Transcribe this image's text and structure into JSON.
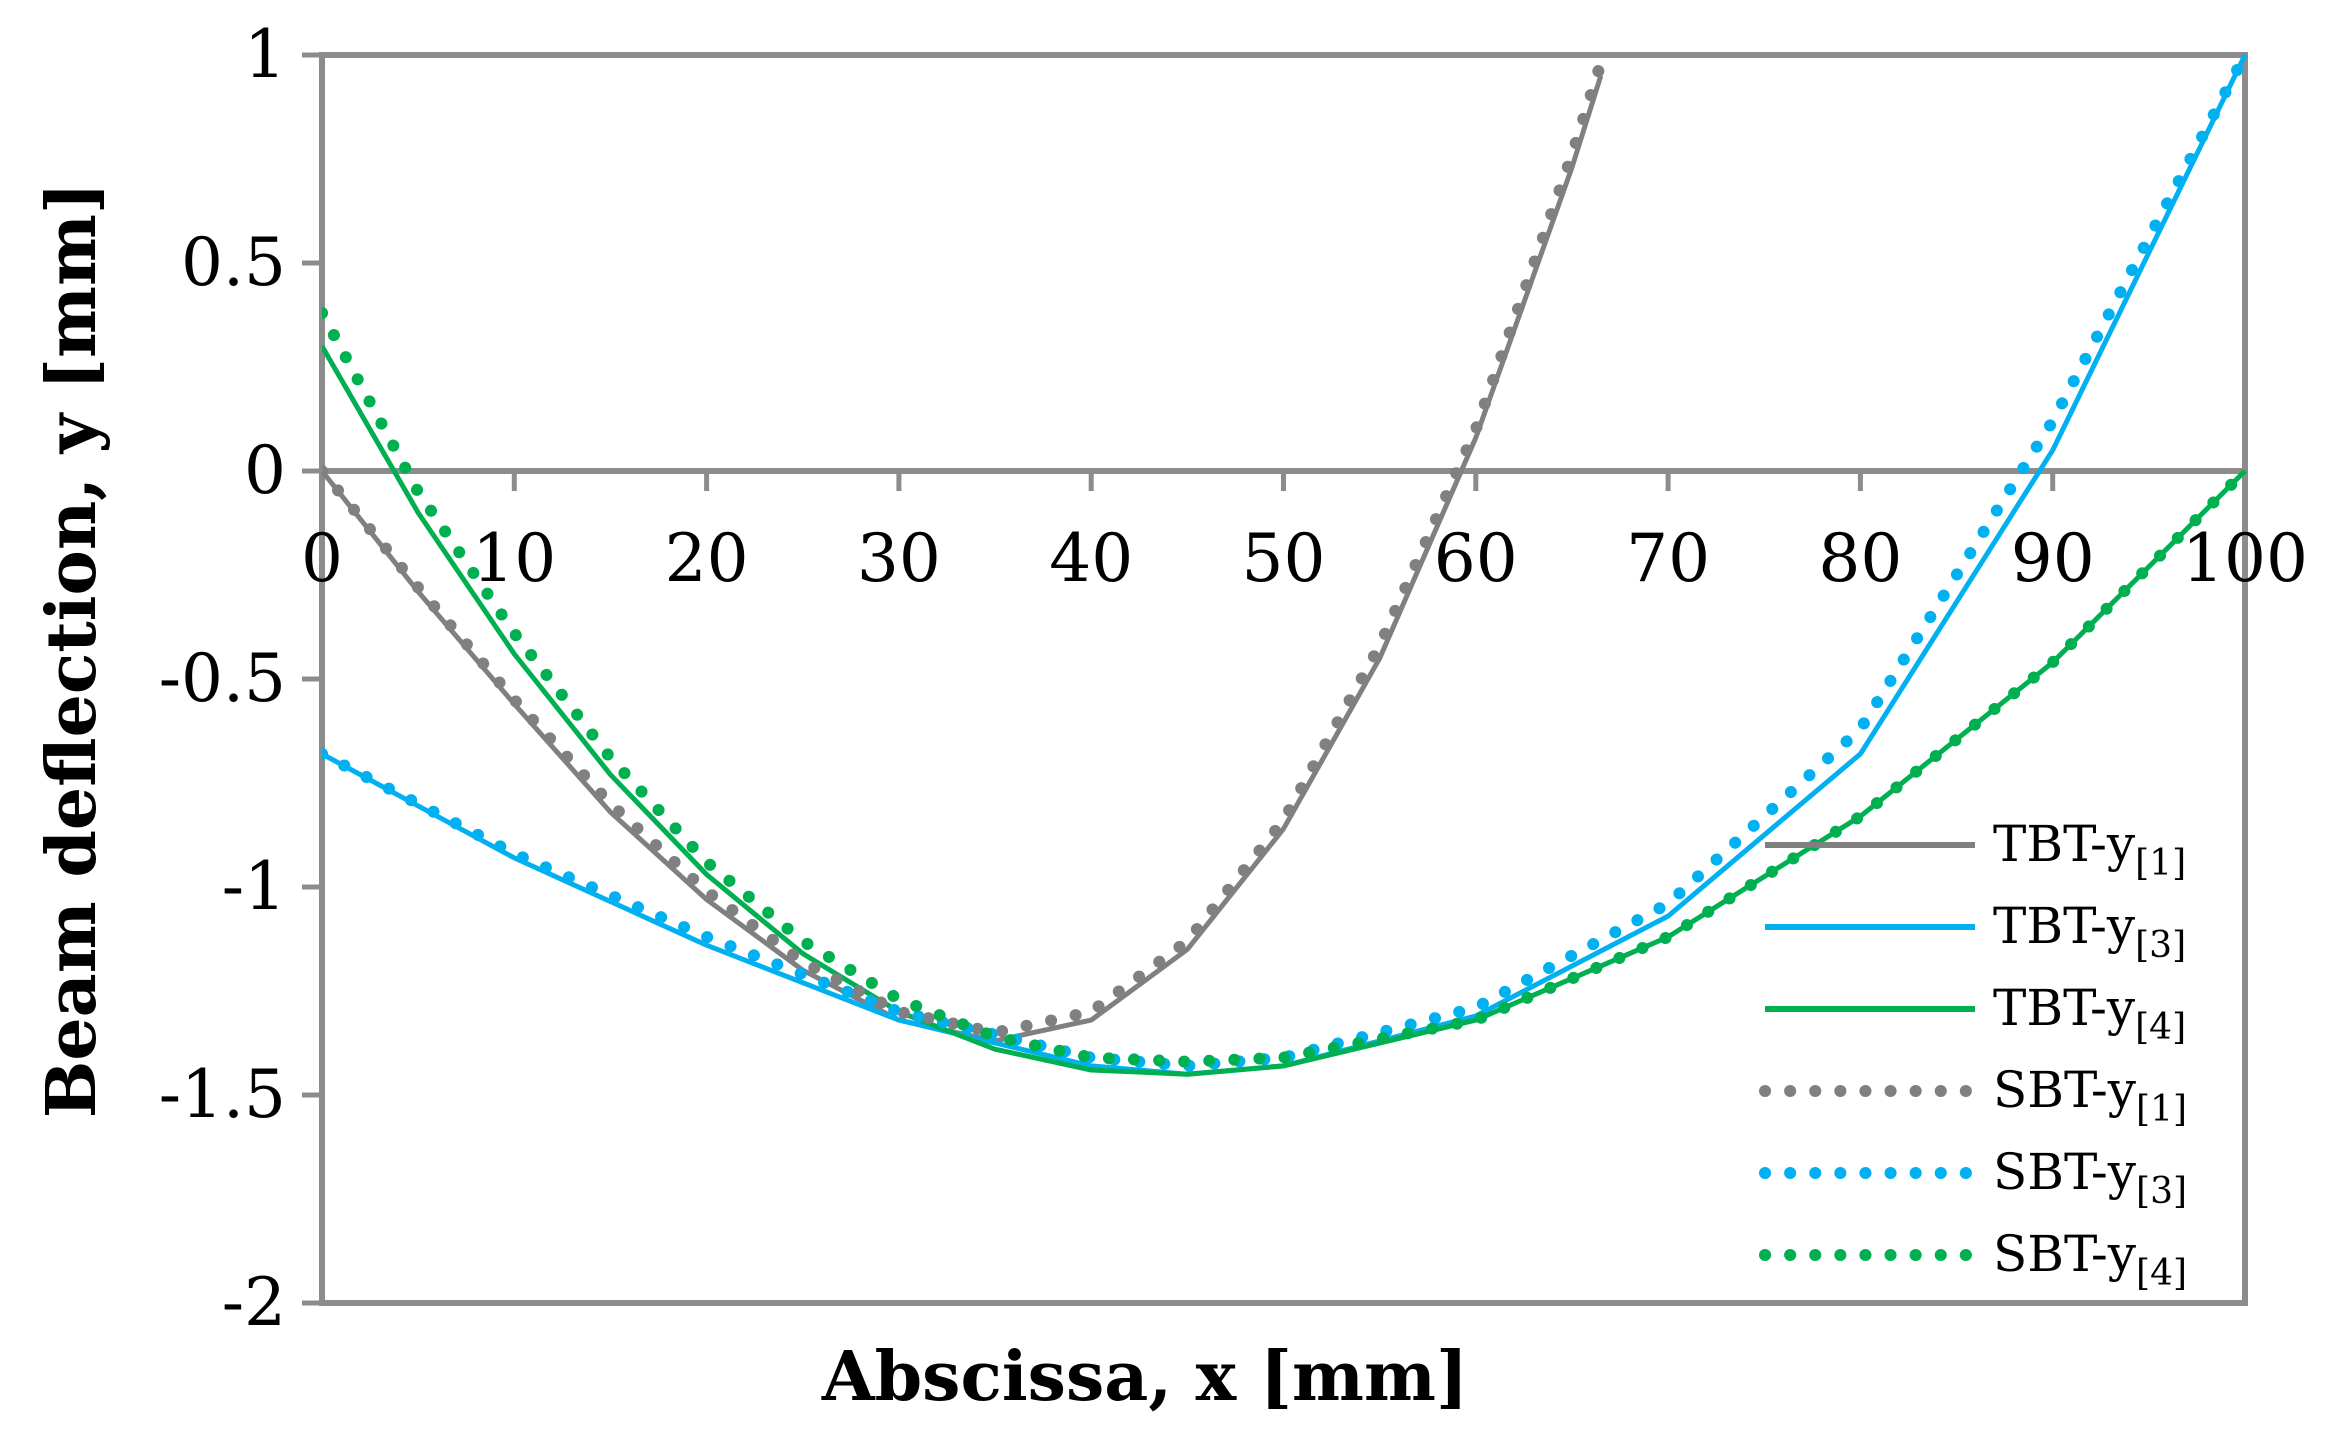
{
  "chart_data": {
    "type": "line",
    "title": "",
    "xlabel": "Abscissa, x [mm]",
    "ylabel": "Beam deflection, y [mm]",
    "xlim": [
      0,
      100
    ],
    "ylim": [
      -2,
      1
    ],
    "xticks": [
      0,
      10,
      20,
      30,
      40,
      50,
      60,
      70,
      80,
      90,
      100
    ],
    "yticks": [
      -2,
      -1.5,
      -1,
      -0.5,
      0,
      0.5,
      1
    ],
    "xtick_labels": [
      "0",
      "10",
      "20",
      "30",
      "40",
      "50",
      "60",
      "70",
      "80",
      "90",
      "100"
    ],
    "ytick_labels": [
      "-2",
      "-1.5",
      "-1",
      "-0.5",
      "0",
      "0.5",
      "1"
    ],
    "grid": false,
    "legend_position": "bottom-right",
    "series": [
      {
        "name": "TBT-y[1]",
        "base": "TBT-y",
        "sub": "[1]",
        "style": "solid",
        "color": "#808080",
        "x": [
          0,
          5,
          10,
          15,
          20,
          25,
          30,
          35,
          40,
          45,
          50,
          55,
          60,
          65,
          66.5
        ],
        "y": [
          0,
          -0.29,
          -0.56,
          -0.82,
          -1.03,
          -1.2,
          -1.32,
          -1.37,
          -1.32,
          -1.15,
          -0.86,
          -0.45,
          0.08,
          0.73,
          0.95
        ]
      },
      {
        "name": "TBT-y[3]",
        "base": "TBT-y",
        "sub": "[3]",
        "style": "solid",
        "color": "#00B0F0",
        "x": [
          0,
          10,
          20,
          30,
          40,
          45,
          50,
          60,
          70,
          80,
          90,
          100
        ],
        "y": [
          -0.68,
          -0.93,
          -1.14,
          -1.32,
          -1.43,
          -1.45,
          -1.43,
          -1.31,
          -1.07,
          -0.68,
          0.05,
          1.0
        ]
      },
      {
        "name": "TBT-y[4]",
        "base": "TBT-y",
        "sub": "[4]",
        "style": "solid",
        "color": "#00B050",
        "x": [
          0,
          5,
          10,
          15,
          20,
          25,
          30,
          35,
          40,
          45,
          50,
          60,
          70,
          80,
          90,
          100
        ],
        "y": [
          0.3,
          -0.1,
          -0.44,
          -0.73,
          -0.97,
          -1.16,
          -1.3,
          -1.39,
          -1.44,
          -1.45,
          -1.43,
          -1.32,
          -1.12,
          -0.83,
          -0.46,
          0.0
        ]
      },
      {
        "name": "SBT-y[1]",
        "base": "SBT-y",
        "sub": "[1]",
        "style": "dotted",
        "color": "#808080",
        "x": [
          0,
          5,
          10,
          15,
          20,
          25,
          30,
          35,
          40,
          45,
          50,
          55,
          60,
          65,
          66.5
        ],
        "y": [
          0,
          -0.28,
          -0.55,
          -0.8,
          -1.01,
          -1.18,
          -1.3,
          -1.35,
          -1.3,
          -1.13,
          -0.84,
          -0.42,
          0.1,
          0.76,
          0.98
        ]
      },
      {
        "name": "SBT-y[3]",
        "base": "SBT-y",
        "sub": "[3]",
        "style": "dotted",
        "color": "#00B0F0",
        "x": [
          0,
          10,
          20,
          30,
          40,
          45,
          50,
          60,
          70,
          80,
          90,
          100
        ],
        "y": [
          -0.68,
          -0.92,
          -1.12,
          -1.3,
          -1.41,
          -1.43,
          -1.41,
          -1.29,
          -1.04,
          -0.62,
          0.12,
          1.0
        ]
      },
      {
        "name": "SBT-y[4]",
        "base": "SBT-y",
        "sub": "[4]",
        "style": "dotted",
        "color": "#00B050",
        "x": [
          0,
          5,
          10,
          15,
          20,
          25,
          30,
          35,
          40,
          45,
          50,
          60,
          70,
          80,
          90,
          100
        ],
        "y": [
          0.38,
          -0.05,
          -0.39,
          -0.69,
          -0.94,
          -1.13,
          -1.27,
          -1.36,
          -1.41,
          -1.42,
          -1.41,
          -1.32,
          -1.12,
          -0.83,
          -0.46,
          0.0
        ]
      }
    ]
  }
}
